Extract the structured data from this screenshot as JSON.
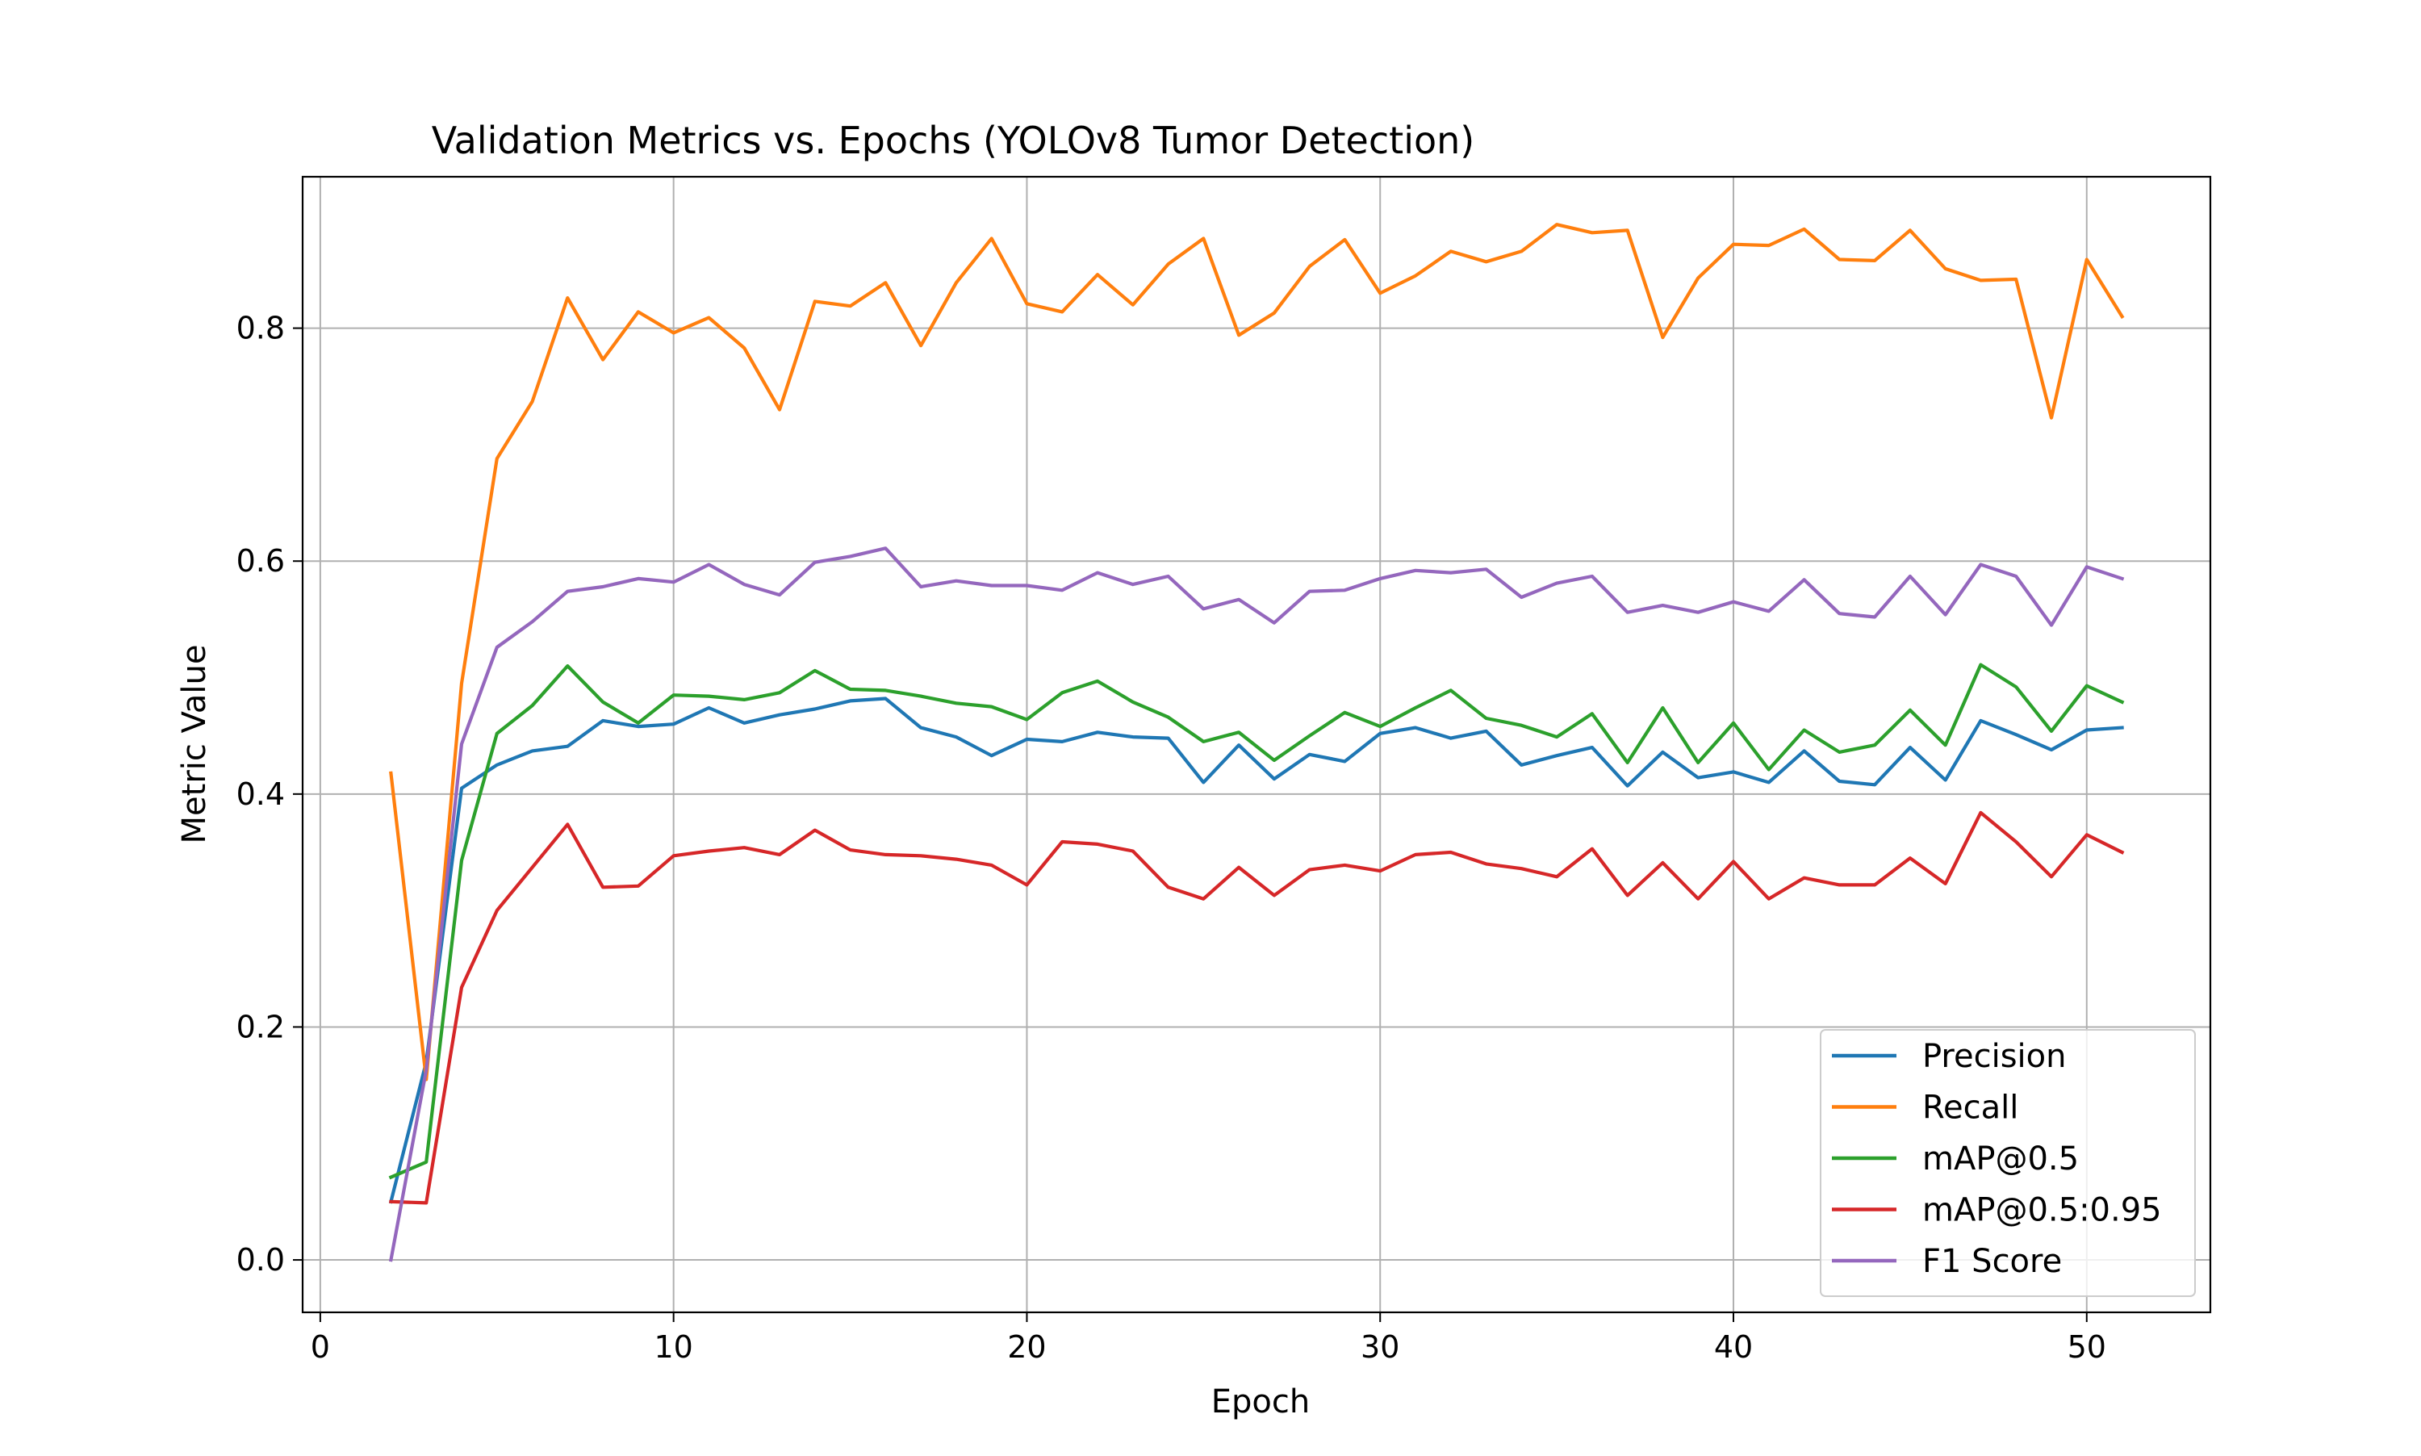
{
  "chart_data": {
    "type": "line",
    "title": "Validation Metrics vs. Epochs (YOLOv8 Tumor Detection)",
    "xlabel": "Epoch",
    "ylabel": "Metric Value",
    "xlim": [
      -0.5,
      53.5
    ],
    "ylim": [
      -0.045,
      0.93
    ],
    "xticks": [
      0,
      10,
      20,
      30,
      40,
      50
    ],
    "yticks": [
      0.0,
      0.2,
      0.4,
      0.6,
      0.8
    ],
    "xtick_labels": [
      "0",
      "10",
      "20",
      "30",
      "40",
      "50"
    ],
    "ytick_labels": [
      "0.0",
      "0.2",
      "0.4",
      "0.6",
      "0.8"
    ],
    "grid": true,
    "legend_position": "lower-right",
    "x": [
      2,
      3,
      4,
      5,
      6,
      7,
      8,
      9,
      10,
      11,
      12,
      13,
      14,
      15,
      16,
      17,
      18,
      19,
      20,
      21,
      22,
      23,
      24,
      25,
      26,
      27,
      28,
      29,
      30,
      31,
      32,
      33,
      34,
      35,
      36,
      37,
      38,
      39,
      40,
      41,
      42,
      43,
      44,
      45,
      46,
      47,
      48,
      49,
      50,
      51
    ],
    "series": [
      {
        "name": "Precision",
        "color": "#1f77b4",
        "values": [
          0.05,
          0.17,
          0.405,
          0.425,
          0.437,
          0.441,
          0.463,
          0.458,
          0.46,
          0.474,
          0.461,
          0.468,
          0.473,
          0.48,
          0.482,
          0.457,
          0.449,
          0.433,
          0.447,
          0.445,
          0.453,
          0.449,
          0.448,
          0.41,
          0.442,
          0.413,
          0.434,
          0.428,
          0.452,
          0.457,
          0.448,
          0.454,
          0.425,
          0.433,
          0.44,
          0.407,
          0.436,
          0.414,
          0.419,
          0.41,
          0.437,
          0.411,
          0.408,
          0.44,
          0.412,
          0.463,
          0.451,
          0.438,
          0.455,
          0.457
        ]
      },
      {
        "name": "Recall",
        "color": "#ff7f0e",
        "values": [
          0.418,
          0.155,
          0.495,
          0.688,
          0.737,
          0.826,
          0.773,
          0.814,
          0.796,
          0.809,
          0.783,
          0.73,
          0.823,
          0.819,
          0.839,
          0.785,
          0.839,
          0.877,
          0.821,
          0.814,
          0.846,
          0.82,
          0.855,
          0.877,
          0.794,
          0.813,
          0.853,
          0.876,
          0.83,
          0.845,
          0.866,
          0.857,
          0.866,
          0.889,
          0.882,
          0.884,
          0.792,
          0.843,
          0.872,
          0.871,
          0.885,
          0.859,
          0.858,
          0.884,
          0.851,
          0.841,
          0.842,
          0.723,
          0.859,
          0.81
        ]
      },
      {
        "name": "mAP@0.5",
        "color": "#2ca02c",
        "values": [
          0.071,
          0.084,
          0.343,
          0.452,
          0.476,
          0.51,
          0.479,
          0.461,
          0.485,
          0.484,
          0.481,
          0.487,
          0.506,
          0.49,
          0.489,
          0.484,
          0.478,
          0.475,
          0.464,
          0.487,
          0.497,
          0.479,
          0.466,
          0.445,
          0.453,
          0.429,
          0.45,
          0.47,
          0.458,
          0.474,
          0.489,
          0.465,
          0.459,
          0.449,
          0.469,
          0.427,
          0.474,
          0.427,
          0.461,
          0.421,
          0.455,
          0.436,
          0.442,
          0.472,
          0.442,
          0.511,
          0.492,
          0.454,
          0.493,
          0.479
        ]
      },
      {
        "name": "mAP@0.5:0.95",
        "color": "#d62728",
        "values": [
          0.05,
          0.049,
          0.234,
          0.3,
          0.337,
          0.374,
          0.32,
          0.321,
          0.347,
          0.351,
          0.354,
          0.348,
          0.369,
          0.352,
          0.348,
          0.347,
          0.344,
          0.339,
          0.322,
          0.359,
          0.357,
          0.351,
          0.32,
          0.31,
          0.337,
          0.313,
          0.335,
          0.339,
          0.334,
          0.348,
          0.35,
          0.34,
          0.336,
          0.329,
          0.353,
          0.313,
          0.341,
          0.31,
          0.342,
          0.31,
          0.328,
          0.322,
          0.322,
          0.345,
          0.323,
          0.384,
          0.359,
          0.329,
          0.365,
          0.35
        ]
      },
      {
        "name": "F1 Score",
        "color": "#9467bd",
        "values": [
          0.0,
          0.163,
          0.443,
          0.526,
          0.548,
          0.574,
          0.578,
          0.585,
          0.582,
          0.597,
          0.58,
          0.571,
          0.599,
          0.604,
          0.611,
          0.578,
          0.583,
          0.579,
          0.579,
          0.575,
          0.59,
          0.58,
          0.587,
          0.559,
          0.567,
          0.547,
          0.574,
          0.575,
          0.585,
          0.592,
          0.59,
          0.593,
          0.569,
          0.581,
          0.587,
          0.556,
          0.562,
          0.556,
          0.565,
          0.557,
          0.584,
          0.555,
          0.552,
          0.587,
          0.554,
          0.597,
          0.587,
          0.545,
          0.595,
          0.585
        ]
      }
    ]
  }
}
